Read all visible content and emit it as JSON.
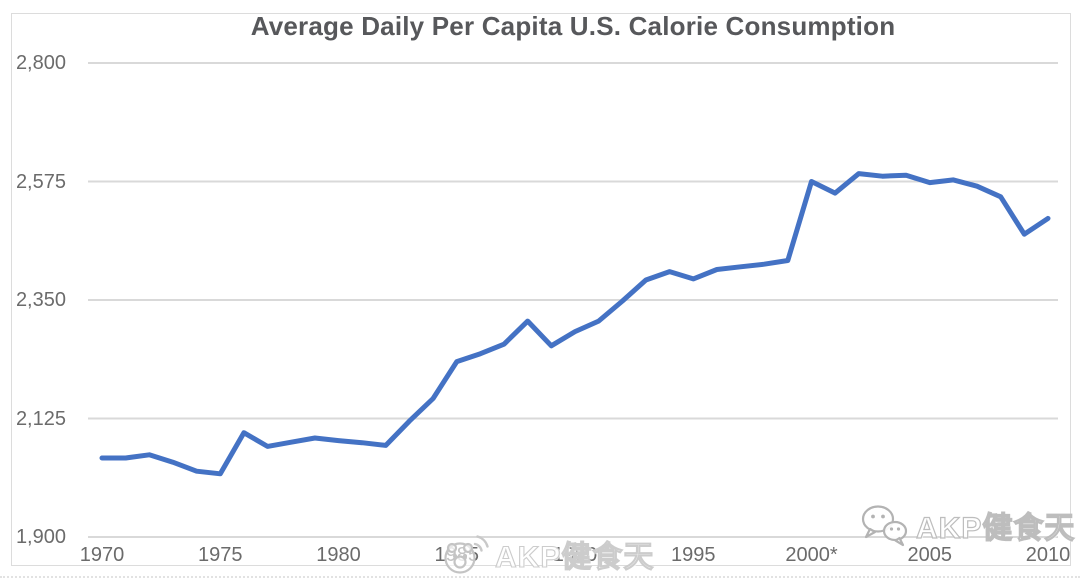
{
  "title": "Average Daily Per Capita U.S. Calorie Consumption",
  "colors": {
    "line": "#4472C4",
    "gridline": "#d9d9d9",
    "title_text": "#57585b",
    "axis_text": "#6b6b6b",
    "frame_border": "#dcdcdc"
  },
  "watermarks": {
    "center": {
      "icon": "panda-broadcast-icon",
      "text": "AKP健食天"
    },
    "right": {
      "icon": "wechat-icon",
      "text": "AKP健食天"
    }
  },
  "chart_data": {
    "type": "line",
    "title": "Average Daily Per Capita U.S. Calorie Consumption",
    "xlabel": "",
    "ylabel": "",
    "xlim": [
      1970,
      2010
    ],
    "ylim": [
      1900,
      2800
    ],
    "grid": true,
    "legend": "none",
    "y_tick_values": [
      2800,
      2575,
      2350,
      2125,
      1900
    ],
    "y_tick_labels": [
      "2,800",
      "2,575",
      "2,350",
      "2,125",
      "1,900"
    ],
    "x_tick_years": [
      1970,
      1975,
      1980,
      1985,
      1990,
      1995,
      2000,
      2005,
      2010
    ],
    "x_tick_labels": [
      "1970",
      "1975",
      "1980",
      "1985",
      "1990",
      "1995",
      "2000*",
      "2005",
      "2010"
    ],
    "x": [
      1970,
      1971,
      1972,
      1973,
      1974,
      1975,
      1976,
      1977,
      1978,
      1979,
      1980,
      1981,
      1982,
      1983,
      1984,
      1985,
      1986,
      1987,
      1988,
      1989,
      1990,
      1991,
      1992,
      1993,
      1994,
      1995,
      1996,
      1997,
      1998,
      1999,
      2000,
      2001,
      2002,
      2003,
      2004,
      2005,
      2006,
      2007,
      2008,
      2009,
      2010
    ],
    "values": [
      2050,
      2050,
      2056,
      2042,
      2025,
      2020,
      2098,
      2072,
      2080,
      2088,
      2083,
      2079,
      2074,
      2120,
      2163,
      2233,
      2248,
      2266,
      2310,
      2263,
      2290,
      2310,
      2348,
      2388,
      2404,
      2390,
      2408,
      2413,
      2418,
      2425,
      2575,
      2553,
      2590,
      2585,
      2587,
      2573,
      2578,
      2566,
      2546,
      2475,
      2505
    ]
  }
}
